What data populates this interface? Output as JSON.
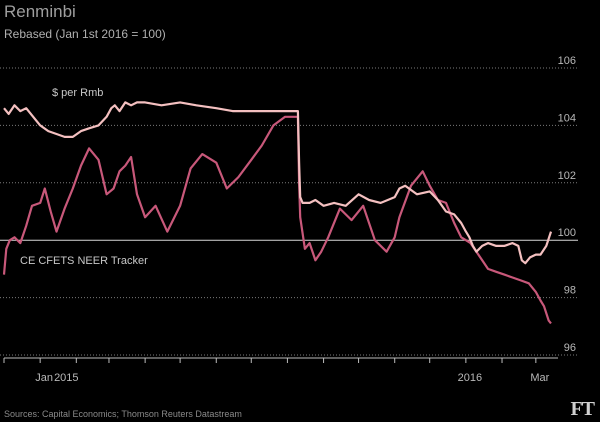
{
  "title": "Renminbi",
  "subtitle": "Rebased (Jan 1st 2016 = 100)",
  "source": "Sources: Capital Economics; Thomson Reuters Datastream",
  "logo": "FT",
  "colors": {
    "background": "#000000",
    "usd_series": "#f4c0c0",
    "neer_series": "#c8587a",
    "grid": "#7a7a7a",
    "baseline": "#d8d8d8"
  },
  "chart_data": {
    "type": "line",
    "title": "Renminbi",
    "subtitle": "Rebased (Jan 1st 2016 = 100)",
    "ylim": [
      96,
      106
    ],
    "yticks": [
      96,
      98,
      100,
      102,
      104,
      106
    ],
    "xlim": [
      "2014-12-01",
      "2016-03-20"
    ],
    "xlabels": [
      {
        "date": "2015-01-01",
        "label": "Jan"
      },
      {
        "date": "2015-01-20",
        "label": "2015"
      },
      {
        "date": "2016-01-01",
        "label": "2016"
      },
      {
        "date": "2016-03-01",
        "label": "Mar"
      }
    ],
    "grid": "horizontal dotted, solid line at 100",
    "series": [
      {
        "name": "$ per Rmb",
        "x": [
          "2014-12-01",
          "2014-12-05",
          "2014-12-10",
          "2014-12-15",
          "2014-12-20",
          "2014-12-28",
          "2015-01-01",
          "2015-01-08",
          "2015-01-15",
          "2015-01-22",
          "2015-01-29",
          "2015-02-05",
          "2015-02-12",
          "2015-02-20",
          "2015-02-27",
          "2015-03-03",
          "2015-03-06",
          "2015-03-10",
          "2015-03-15",
          "2015-03-20",
          "2015-03-25",
          "2015-04-01",
          "2015-04-15",
          "2015-05-01",
          "2015-05-15",
          "2015-06-01",
          "2015-06-15",
          "2015-07-01",
          "2015-07-15",
          "2015-07-25",
          "2015-08-05",
          "2015-08-10",
          "2015-08-11",
          "2015-08-12",
          "2015-08-14",
          "2015-08-20",
          "2015-08-25",
          "2015-09-01",
          "2015-09-10",
          "2015-09-20",
          "2015-10-01",
          "2015-10-10",
          "2015-10-20",
          "2015-11-01",
          "2015-11-05",
          "2015-11-10",
          "2015-11-20",
          "2015-12-01",
          "2015-12-08",
          "2015-12-15",
          "2015-12-22",
          "2015-12-28",
          "2016-01-01",
          "2016-01-04",
          "2016-01-07",
          "2016-01-10",
          "2016-01-15",
          "2016-01-20",
          "2016-01-27",
          "2016-02-03",
          "2016-02-10",
          "2016-02-15",
          "2016-02-18",
          "2016-02-21",
          "2016-02-25",
          "2016-03-01",
          "2016-03-05",
          "2016-03-10",
          "2016-03-14"
        ],
        "values": [
          104.6,
          104.4,
          104.7,
          104.5,
          104.6,
          104.2,
          104.0,
          103.8,
          103.7,
          103.6,
          103.6,
          103.8,
          103.9,
          104.0,
          104.3,
          104.6,
          104.7,
          104.5,
          104.8,
          104.7,
          104.8,
          104.8,
          104.7,
          104.8,
          104.7,
          104.6,
          104.5,
          104.5,
          104.5,
          104.5,
          104.5,
          104.5,
          102.7,
          101.5,
          101.3,
          101.3,
          101.4,
          101.2,
          101.3,
          101.2,
          101.6,
          101.4,
          101.3,
          101.5,
          101.8,
          101.9,
          101.6,
          101.7,
          101.4,
          101.0,
          100.9,
          100.6,
          100.3,
          100.1,
          99.8,
          99.6,
          99.8,
          99.9,
          99.8,
          99.8,
          99.9,
          99.8,
          99.3,
          99.2,
          99.4,
          99.5,
          99.5,
          99.8,
          100.3
        ]
      },
      {
        "name": "CE CFETS NEER Tracker",
        "x": [
          "2014-12-01",
          "2014-12-03",
          "2014-12-06",
          "2014-12-10",
          "2014-12-15",
          "2014-12-20",
          "2014-12-25",
          "2015-01-01",
          "2015-01-05",
          "2015-01-10",
          "2015-01-15",
          "2015-01-22",
          "2015-01-29",
          "2015-02-05",
          "2015-02-12",
          "2015-02-20",
          "2015-02-27",
          "2015-03-05",
          "2015-03-10",
          "2015-03-15",
          "2015-03-20",
          "2015-03-25",
          "2015-04-01",
          "2015-04-10",
          "2015-04-20",
          "2015-05-01",
          "2015-05-10",
          "2015-05-20",
          "2015-06-01",
          "2015-06-10",
          "2015-06-20",
          "2015-07-01",
          "2015-07-10",
          "2015-07-20",
          "2015-07-30",
          "2015-08-05",
          "2015-08-10",
          "2015-08-11",
          "2015-08-12",
          "2015-08-16",
          "2015-08-20",
          "2015-08-25",
          "2015-08-30",
          "2015-09-05",
          "2015-09-15",
          "2015-09-25",
          "2015-10-05",
          "2015-10-15",
          "2015-10-25",
          "2015-11-01",
          "2015-11-05",
          "2015-11-15",
          "2015-11-25",
          "2015-12-01",
          "2015-12-08",
          "2015-12-15",
          "2015-12-22",
          "2015-12-28",
          "2016-01-01",
          "2016-01-05",
          "2016-01-10",
          "2016-01-15",
          "2016-01-20",
          "2016-01-27",
          "2016-02-03",
          "2016-02-10",
          "2016-02-17",
          "2016-02-24",
          "2016-03-01",
          "2016-03-05",
          "2016-03-08",
          "2016-03-12",
          "2016-03-14"
        ],
        "values": [
          98.8,
          99.7,
          100.0,
          100.1,
          99.9,
          100.5,
          101.2,
          101.3,
          101.8,
          101.0,
          100.3,
          101.1,
          101.8,
          102.6,
          103.2,
          102.8,
          101.6,
          101.8,
          102.4,
          102.6,
          102.9,
          101.6,
          100.8,
          101.2,
          100.3,
          101.2,
          102.5,
          103.0,
          102.7,
          101.8,
          102.2,
          102.8,
          103.3,
          104.0,
          104.3,
          104.3,
          104.3,
          102.0,
          100.8,
          99.7,
          99.9,
          99.3,
          99.6,
          100.1,
          101.1,
          100.7,
          101.2,
          100.0,
          99.6,
          100.1,
          100.8,
          101.9,
          102.4,
          101.9,
          101.4,
          101.3,
          100.6,
          100.1,
          100.0,
          99.9,
          99.6,
          99.3,
          99.0,
          98.9,
          98.8,
          98.7,
          98.6,
          98.5,
          98.2,
          97.9,
          97.7,
          97.2,
          97.1
        ]
      }
    ]
  }
}
